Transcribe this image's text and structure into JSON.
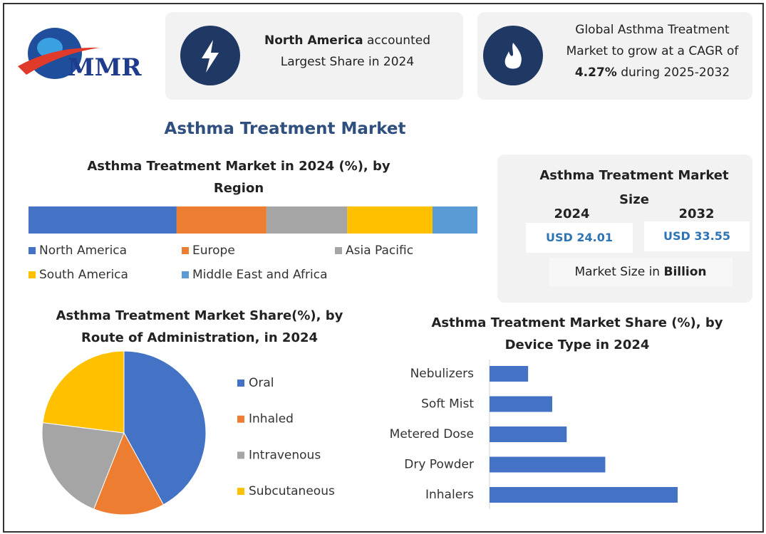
{
  "logo": "MMR",
  "highlights": [
    {
      "bold": "North America",
      "rest": "accounted Largest Share in 2024"
    },
    {
      "lead": "Global Asthma Treatment Market to grow at a CAGR of",
      "bold": "4.27%",
      "rest": "during 2025-2032"
    }
  ],
  "title": "Asthma Treatment Market",
  "market_size": {
    "title": "Asthma Treatment Market Size",
    "years": [
      "2024",
      "2032"
    ],
    "values": [
      "USD 24.01",
      "USD 33.55"
    ],
    "unit_lead": "Market Size in",
    "unit": "Billion"
  },
  "chart_data": [
    {
      "type": "stacked-bar",
      "title": "Asthma Treatment Market  in 2024 (%), by Region",
      "series": [
        {
          "name": "North America",
          "color": "#4472c4",
          "values": [
            33
          ]
        },
        {
          "name": "Europe",
          "color": "#ed7d31",
          "values": [
            20
          ]
        },
        {
          "name": "Asia Pacific",
          "color": "#a5a5a5",
          "values": [
            18
          ]
        },
        {
          "name": "South America",
          "color": "#ffc000",
          "values": [
            19
          ]
        },
        {
          "name": "Middle East and Africa",
          "color": "#5b9bd5",
          "values": [
            10
          ]
        }
      ]
    },
    {
      "type": "pie",
      "title": "Asthma Treatment Market  Share(%), by Route of Administration, in 2024",
      "categories": [
        "Oral",
        "Inhaled",
        "Intravenous",
        "Subcutaneous"
      ],
      "values": [
        42,
        14,
        21,
        23
      ],
      "colors": [
        "#4472c4",
        "#ed7d31",
        "#a5a5a5",
        "#ffc000"
      ]
    },
    {
      "type": "hbar",
      "title": "Asthma Treatment Market   Share (%), by Device Type in 2024",
      "categories": [
        "Nebulizers",
        "Soft Mist",
        "Metered Dose",
        "Dry Powder",
        "Inhalers"
      ],
      "values": [
        8,
        13,
        16,
        24,
        39
      ],
      "color": "#4472c4"
    }
  ]
}
